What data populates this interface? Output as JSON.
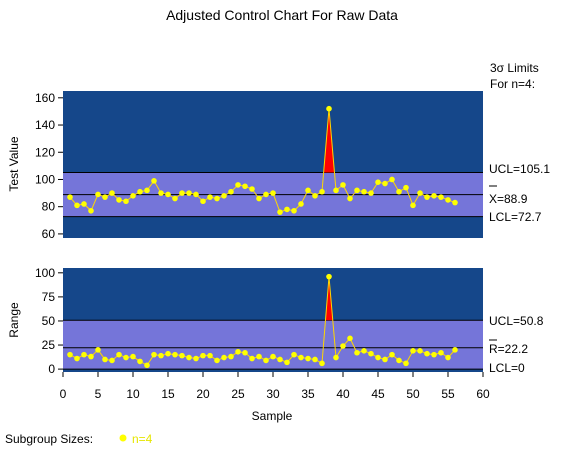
{
  "chart_data": [
    {
      "type": "line",
      "title": "Adjusted Control Chart For Raw Data",
      "limits_header": [
        "3σ Limits",
        "For n=4:"
      ],
      "ylabel": "Test Value",
      "ylim": [
        57,
        165
      ],
      "yticks": [
        60,
        80,
        100,
        120,
        140,
        160
      ],
      "limits": {
        "ucl": {
          "label": "UCL=105.1",
          "value": 105.1
        },
        "center": {
          "label": "X=88.9",
          "value": 88.9
        },
        "lcl": {
          "label": "LCL=72.7",
          "value": 72.7
        }
      },
      "x": [
        1,
        2,
        3,
        4,
        5,
        6,
        7,
        8,
        9,
        10,
        11,
        12,
        13,
        14,
        15,
        16,
        17,
        18,
        19,
        20,
        21,
        22,
        23,
        24,
        25,
        26,
        27,
        28,
        29,
        30,
        31,
        32,
        33,
        34,
        35,
        36,
        37,
        38,
        39,
        40,
        41,
        42,
        43,
        44,
        45,
        46,
        47,
        48,
        49,
        50,
        51,
        52,
        53,
        54,
        55,
        56
      ],
      "values": [
        87,
        81,
        82,
        77,
        89,
        87,
        90,
        85,
        84,
        88,
        91,
        92,
        99,
        90,
        89,
        86,
        90,
        90,
        89,
        84,
        87,
        86,
        88,
        91,
        96,
        95,
        93,
        86,
        89,
        90,
        76,
        78,
        77,
        82,
        92,
        88,
        91,
        152,
        92,
        96,
        86,
        92,
        91,
        90,
        98,
        97,
        100,
        91,
        94,
        81,
        90,
        87,
        88,
        87,
        85,
        83
      ],
      "out_of_control": [
        38
      ]
    },
    {
      "type": "line",
      "ylabel": "Range",
      "xlabel": "Sample",
      "ylim": [
        -3,
        105
      ],
      "yticks": [
        0,
        25,
        50,
        75,
        100
      ],
      "xlim": [
        0,
        60
      ],
      "xticks": [
        0,
        5,
        10,
        15,
        20,
        25,
        30,
        35,
        40,
        45,
        50,
        55,
        60
      ],
      "limits": {
        "ucl": {
          "label": "UCL=50.8",
          "value": 50.8
        },
        "center": {
          "label": "R=22.2",
          "value": 22.2
        },
        "lcl": {
          "label": "LCL=0",
          "value": 0
        }
      },
      "x": [
        1,
        2,
        3,
        4,
        5,
        6,
        7,
        8,
        9,
        10,
        11,
        12,
        13,
        14,
        15,
        16,
        17,
        18,
        19,
        20,
        21,
        22,
        23,
        24,
        25,
        26,
        27,
        28,
        29,
        30,
        31,
        32,
        33,
        34,
        35,
        36,
        37,
        38,
        39,
        40,
        41,
        42,
        43,
        44,
        45,
        46,
        47,
        48,
        49,
        50,
        51,
        52,
        53,
        54,
        55,
        56
      ],
      "values": [
        15,
        11,
        15,
        13,
        20,
        10,
        9,
        15,
        12,
        13,
        8,
        4,
        15,
        14,
        16,
        15,
        14,
        12,
        11,
        14,
        14,
        9,
        12,
        13,
        18,
        17,
        11,
        13,
        9,
        13,
        10,
        7,
        15,
        12,
        11,
        10,
        6,
        96,
        12,
        24,
        32,
        17,
        19,
        16,
        12,
        10,
        15,
        9,
        6,
        19,
        19,
        16,
        15,
        17,
        12,
        20
      ],
      "out_of_control": [
        38
      ]
    }
  ],
  "footer": {
    "label": "Subgroup Sizes:",
    "legend": "n=4"
  },
  "colors": {
    "outer_band": "#15478a",
    "inner_band": "#7575d9",
    "point": "#ffff00",
    "line": "#ffd700",
    "alarm": "#ff0000"
  }
}
